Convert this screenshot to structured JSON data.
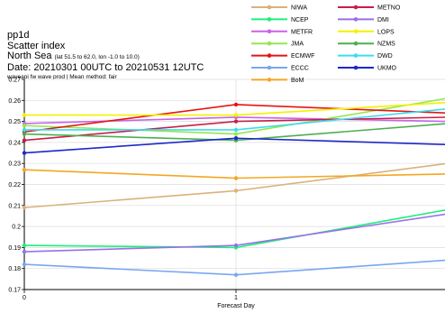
{
  "header": {
    "line1": "pp1d",
    "line2": "Scatter index",
    "region": "North Sea",
    "region_extent": "(lat  51.5 to 62.0, lon  -1.0 to 10.0)",
    "dates": "Date: 20210301 00UTC to 20210531 12UTC",
    "subline": "waveapi fw wave prod | Mean method: fair"
  },
  "chart_data": {
    "type": "line",
    "x": [
      0,
      1,
      2
    ],
    "xticks": [
      "0",
      "1"
    ],
    "xlabel": "Forecast Day",
    "ylabel": "",
    "ylim": [
      0.17,
      0.27
    ],
    "yticks": [
      "0.17",
      "0.18",
      "0.19",
      "0.2",
      "0.21",
      "0.22",
      "0.23",
      "0.24",
      "0.25",
      "0.26",
      "0.27"
    ],
    "grid": true,
    "legend_position": "top-right, two columns above plot",
    "series": [
      {
        "name": "NIWA",
        "color": "#d9b27a",
        "values": [
          0.209,
          0.217,
          0.23
        ]
      },
      {
        "name": "NCEP",
        "color": "#1bf07a",
        "values": [
          0.191,
          0.19,
          0.208
        ]
      },
      {
        "name": "METFR",
        "color": "#c864e6",
        "values": [
          0.249,
          0.252,
          0.25
        ]
      },
      {
        "name": "JMA",
        "color": "#96e650",
        "values": [
          0.248,
          0.244,
          0.261
        ]
      },
      {
        "name": "ECMWF",
        "color": "#e61414",
        "values": [
          0.245,
          0.258,
          0.254
        ]
      },
      {
        "name": "ECCC",
        "color": "#78a6f0",
        "values": [
          0.182,
          0.177,
          0.184
        ]
      },
      {
        "name": "BoM",
        "color": "#f5a623",
        "values": [
          0.227,
          0.223,
          0.225
        ]
      },
      {
        "name": "METNO",
        "color": "#c81e46",
        "values": [
          0.241,
          0.25,
          0.252
        ]
      },
      {
        "name": "DMI",
        "color": "#9a6fe8",
        "values": [
          0.188,
          0.191,
          0.206
        ]
      },
      {
        "name": "LOPS",
        "color": "#f2f200",
        "values": [
          0.253,
          0.253,
          0.259
        ]
      },
      {
        "name": "NZMS",
        "color": "#4caf50",
        "values": [
          0.244,
          0.241,
          0.249
        ]
      },
      {
        "name": "DWD",
        "color": "#3cdcf0",
        "values": [
          0.246,
          0.246,
          0.256
        ]
      },
      {
        "name": "UKMO",
        "color": "#1e28c8",
        "values": [
          0.235,
          0.242,
          0.239
        ]
      }
    ]
  }
}
